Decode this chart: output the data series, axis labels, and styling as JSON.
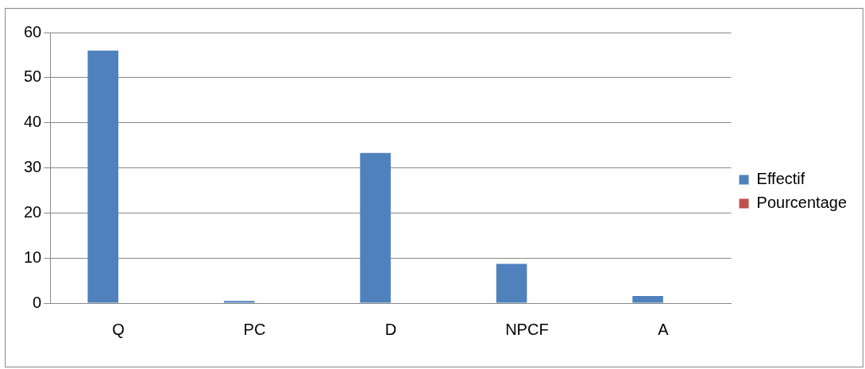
{
  "chart_data": {
    "type": "bar",
    "categories": [
      "Q",
      "PC",
      "D",
      "NPCF",
      "A"
    ],
    "series": [
      {
        "name": "Effectif",
        "color": "#4f81bd",
        "values": [
          56,
          0.5,
          33.3,
          8.7,
          1.6
        ]
      },
      {
        "name": "Pourcentage",
        "color": "#c0504d",
        "values": [
          0,
          0,
          0,
          0,
          0
        ]
      }
    ],
    "ylim": [
      0,
      60
    ],
    "yticks": [
      0,
      10,
      20,
      30,
      40,
      50,
      60
    ],
    "grid": "y",
    "legend": "right"
  }
}
